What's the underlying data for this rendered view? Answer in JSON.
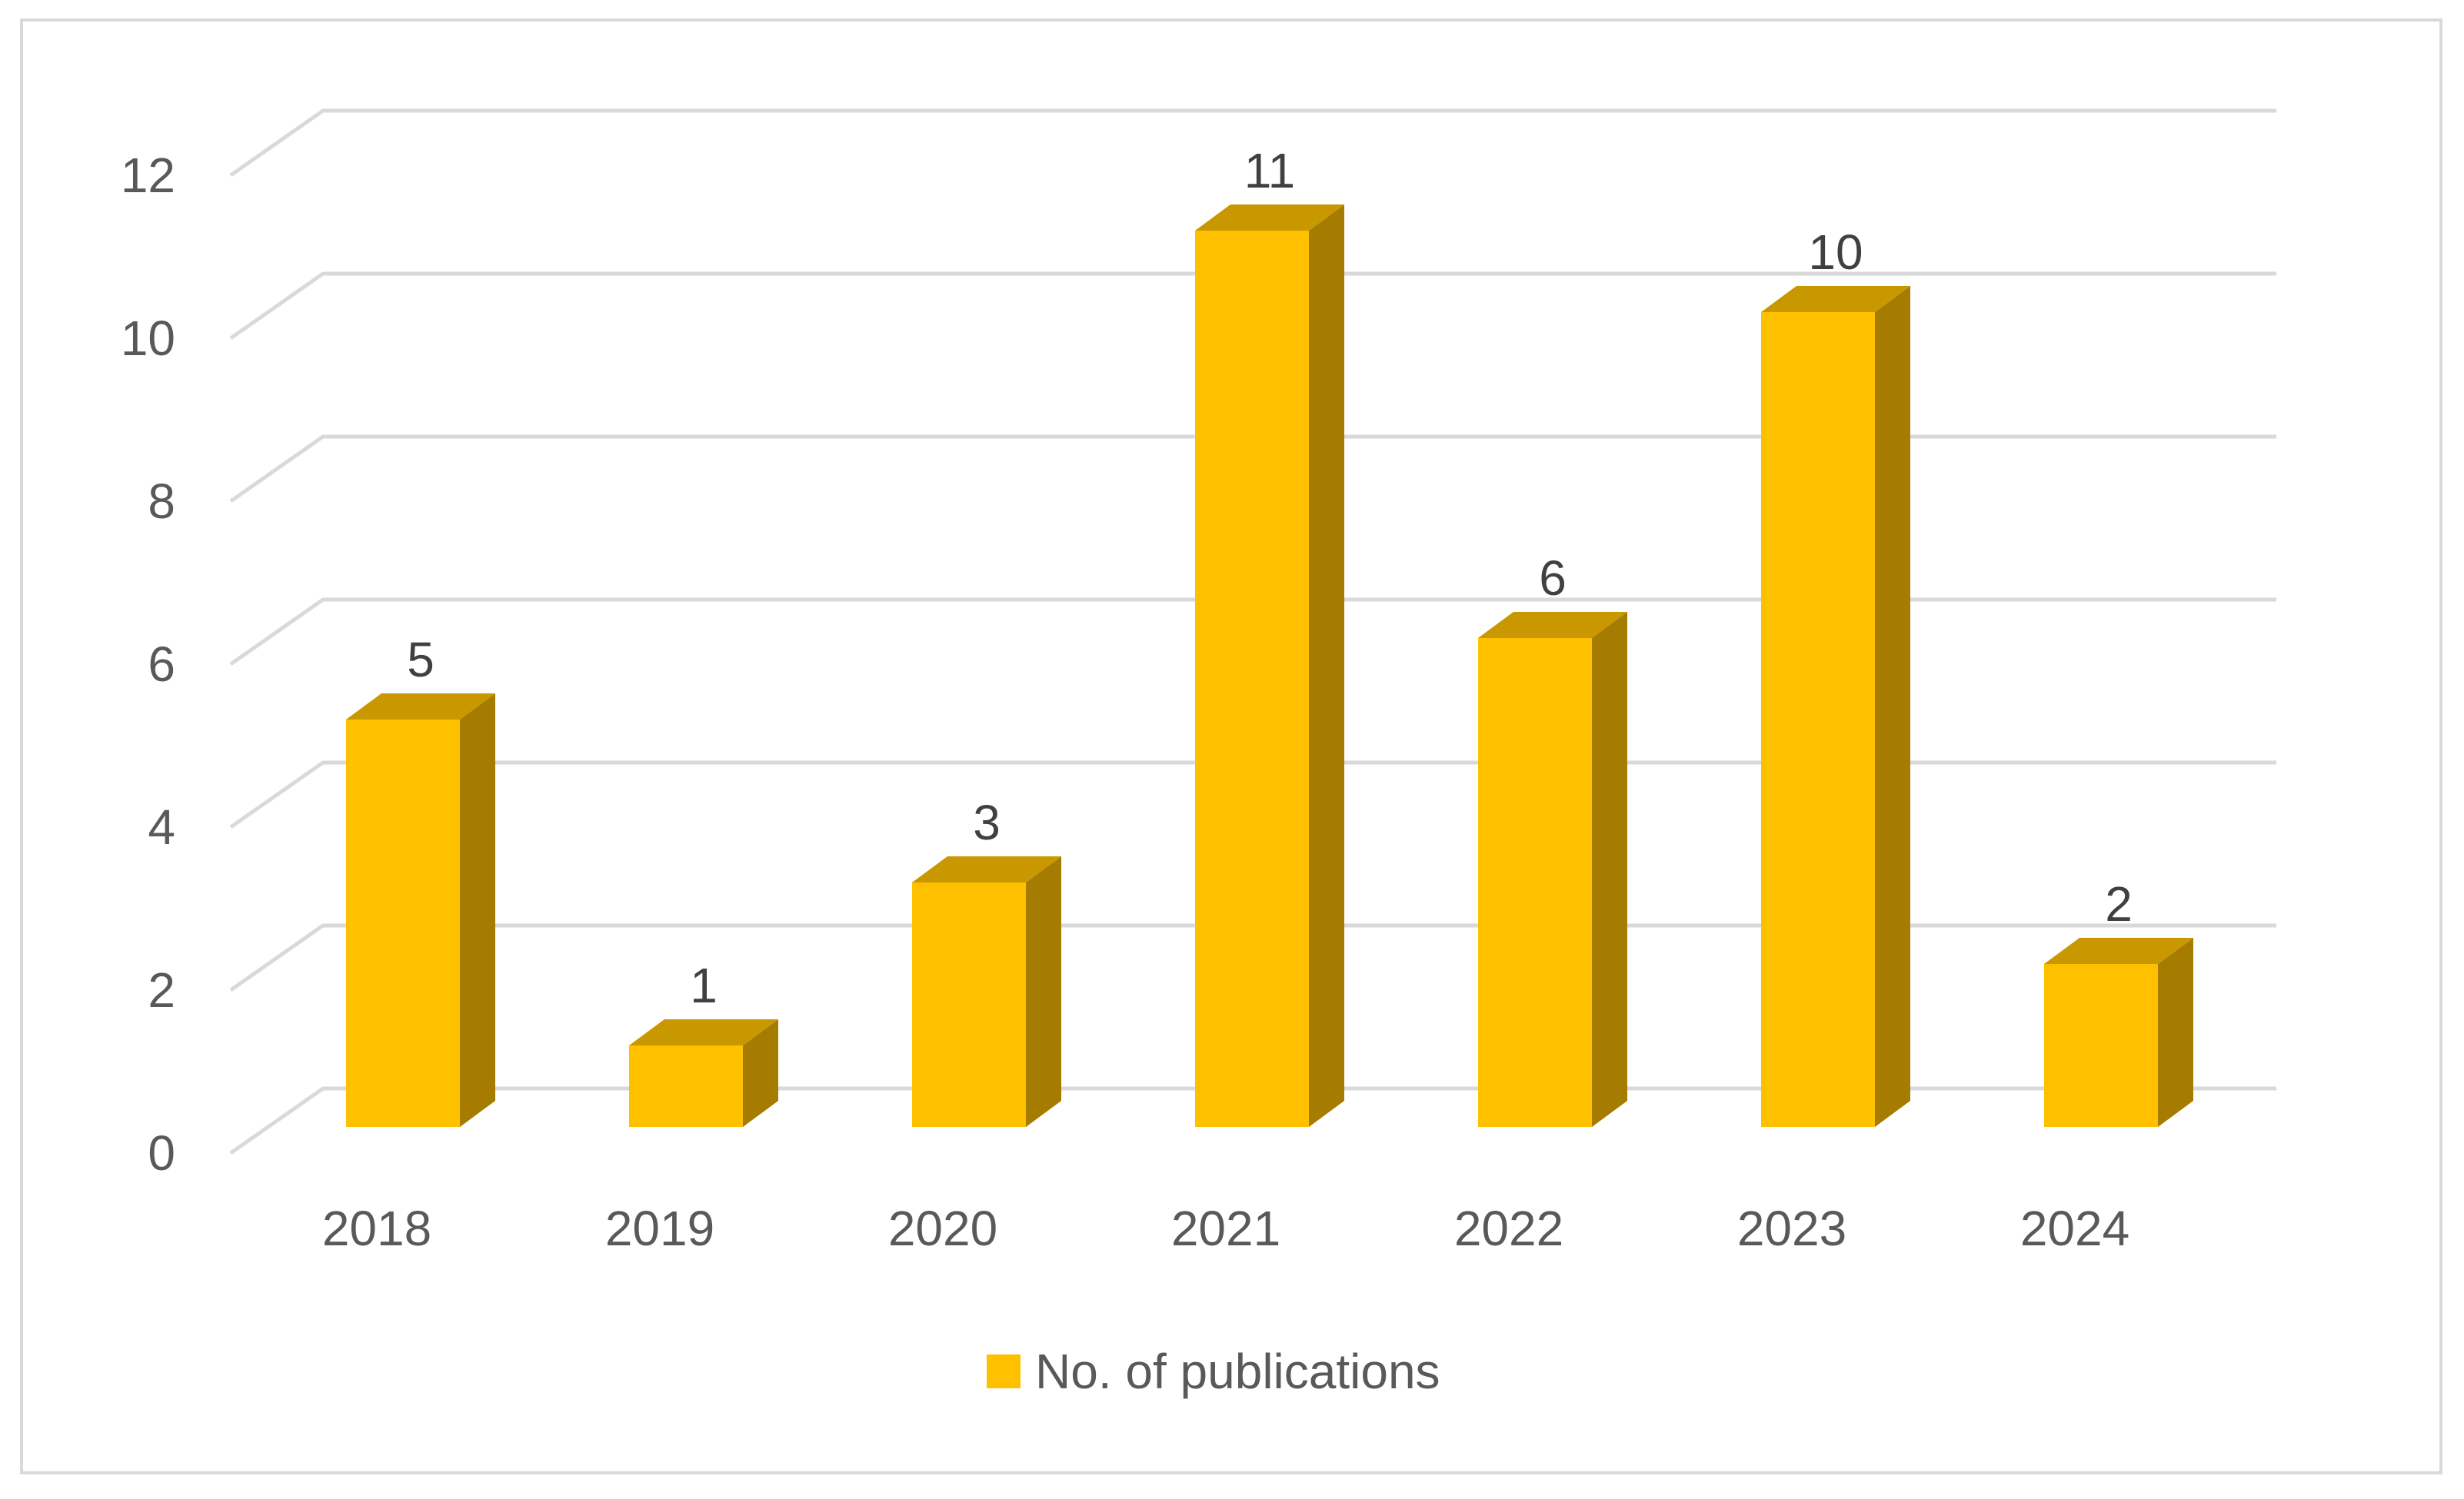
{
  "chart_data": {
    "type": "bar",
    "style": "3d-column",
    "categories": [
      "2018",
      "2019",
      "2020",
      "2021",
      "2022",
      "2023",
      "2024"
    ],
    "series": [
      {
        "name": "No. of publications",
        "values": [
          5,
          1,
          3,
          11,
          6,
          10,
          2
        ],
        "color": "#FFC000",
        "side_color": "#A67C00",
        "top_color": "#C99700"
      }
    ],
    "title": "",
    "xlabel": "",
    "ylabel": "",
    "ylim": [
      0,
      12
    ],
    "yticks": [
      "0",
      "2",
      "4",
      "6",
      "8",
      "10",
      "12"
    ],
    "data_labels": [
      "5",
      "1",
      "3",
      "11",
      "6",
      "10",
      "2"
    ],
    "grid": true,
    "legend": "bottom",
    "gridline_color": "#d9d9d9"
  }
}
